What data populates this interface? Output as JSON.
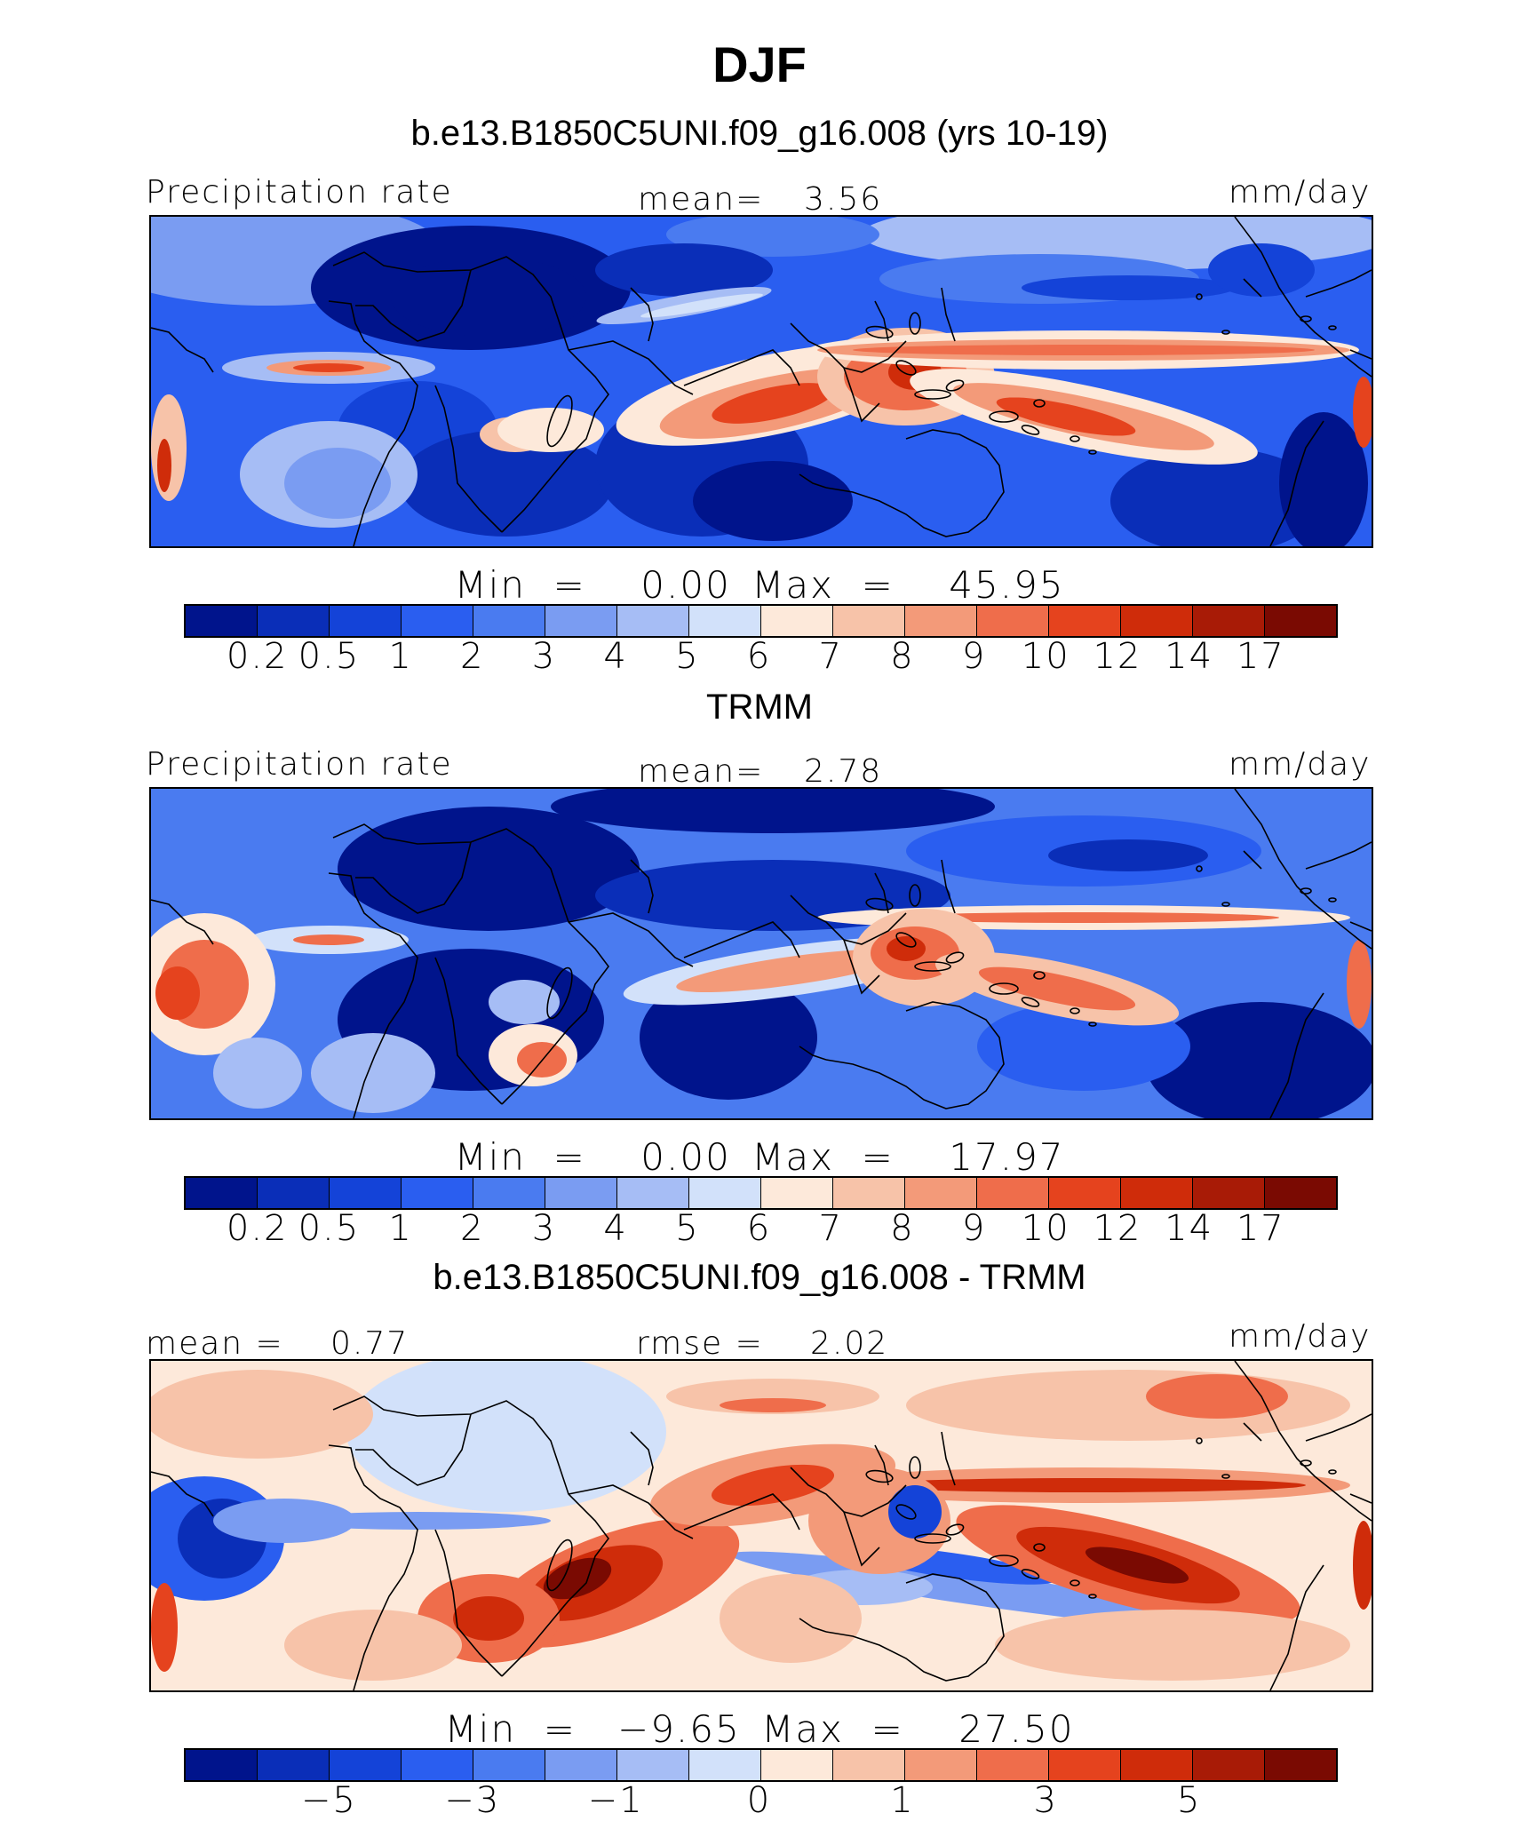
{
  "figure": {
    "season": "DJF",
    "model_title": "b.e13.B1850C5UNI.f09_g16.008 (yrs 10-19)",
    "obs_title": "TRMM",
    "diff_title": "b.e13.B1850C5UNI.f09_g16.008 - TRMM"
  },
  "colors": {
    "abs_scale": [
      "#00148c",
      "#0a2eb8",
      "#1443d8",
      "#2a5ef0",
      "#4a7bf0",
      "#7a9cf2",
      "#a6bdf5",
      "#d2e1fa",
      "#fde9da",
      "#f7c3a9",
      "#f39a79",
      "#ef6d4b",
      "#e5431e",
      "#cf2c0a",
      "#a81b06",
      "#7a0a02"
    ],
    "diff_scale": [
      "#00148c",
      "#0a2eb8",
      "#1443d8",
      "#2a5ef0",
      "#4a7bf0",
      "#7a9cf2",
      "#a6bdf5",
      "#d2e1fa",
      "#fde9da",
      "#f7c3a9",
      "#f39a79",
      "#ef6d4b",
      "#e5431e",
      "#cf2c0a",
      "#a81b06",
      "#7a0a02"
    ]
  },
  "chart_data": [
    {
      "type": "heatmap",
      "title": "b.e13.B1850C5UNI.f09_g16.008 (yrs 10-19)",
      "left_label": "Precipitation rate",
      "mean_text": "mean=",
      "mean_value": "3.56",
      "units": "mm/day",
      "min_text": "Min",
      "min_value": "0.00",
      "max_text": "Max",
      "max_value": "45.95",
      "colorbar_ticks": [
        "0.2",
        "0.5",
        "1",
        "2",
        "3",
        "4",
        "5",
        "6",
        "7",
        "8",
        "9",
        "10",
        "12",
        "14",
        "17"
      ]
    },
    {
      "type": "heatmap",
      "title": "TRMM",
      "left_label": "Precipitation rate",
      "mean_text": "mean=",
      "mean_value": "2.78",
      "units": "mm/day",
      "min_text": "Min",
      "min_value": "0.00",
      "max_text": "Max",
      "max_value": "17.97",
      "colorbar_ticks": [
        "0.2",
        "0.5",
        "1",
        "2",
        "3",
        "4",
        "5",
        "6",
        "7",
        "8",
        "9",
        "10",
        "12",
        "14",
        "17"
      ]
    },
    {
      "type": "heatmap",
      "title": "b.e13.B1850C5UNI.f09_g16.008 - TRMM",
      "mean_text": "mean =",
      "mean_value": "0.77",
      "rmse_text": "rmse =",
      "rmse_value": "2.02",
      "units": "mm/day",
      "min_text": "Min",
      "min_value": "−9.65",
      "max_text": "Max",
      "max_value": "27.50",
      "colorbar_ticks": [
        "−5",
        "−3",
        "−1",
        "0",
        "1",
        "3",
        "5"
      ]
    }
  ]
}
